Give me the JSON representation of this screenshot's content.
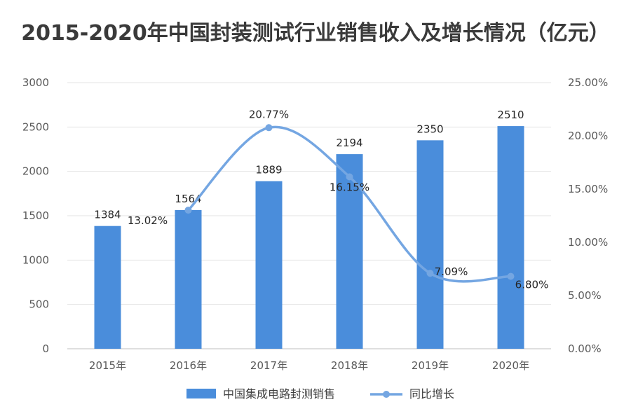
{
  "chart_data": {
    "type": "bar",
    "title": "2015-2020年中国封装测试行业销售收入及增长情况（亿元）",
    "categories": [
      "2015年",
      "2016年",
      "2017年",
      "2018年",
      "2019年",
      "2020年"
    ],
    "series": [
      {
        "name": "中国集成电路封测销售",
        "type": "bar",
        "axis": "left",
        "values": [
          1384,
          1564,
          1889,
          2194,
          2350,
          2510
        ],
        "labels": [
          "1384",
          "1564",
          "1889",
          "2194",
          "2350",
          "2510"
        ],
        "color": "#4a8ddb"
      },
      {
        "name": "同比增长",
        "type": "line",
        "axis": "right",
        "values": [
          null,
          13.02,
          20.77,
          16.15,
          7.09,
          6.8
        ],
        "labels": [
          "",
          "13.02%",
          "20.77%",
          "16.15%",
          "7.09%",
          "6.80%"
        ],
        "color": "#74a6e2"
      }
    ],
    "y_left": {
      "ylim": [
        0,
        3000
      ],
      "ticks": [
        "0",
        "500",
        "1000",
        "1500",
        "2000",
        "2500",
        "3000"
      ]
    },
    "y_right": {
      "ylim": [
        0,
        25
      ],
      "ticks": [
        "0.00%",
        "5.00%",
        "10.00%",
        "15.00%",
        "20.00%",
        "25.00%"
      ]
    },
    "grid": true,
    "legend_position": "bottom"
  }
}
